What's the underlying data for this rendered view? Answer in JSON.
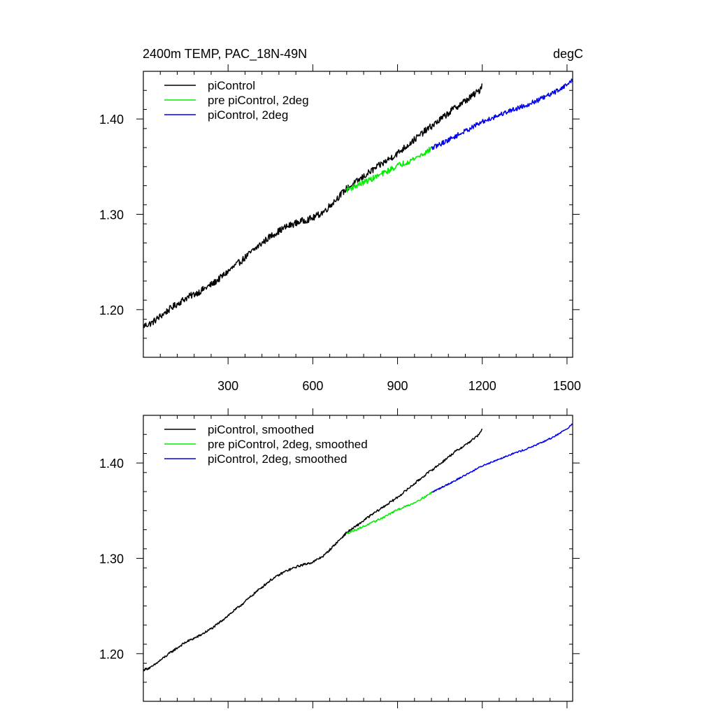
{
  "chart_data": [
    {
      "type": "line",
      "title_left": "2400m TEMP, PAC_18N-49N",
      "title_right": "degC",
      "xlim": [
        0,
        1520
      ],
      "ylim": [
        1.15,
        1.45
      ],
      "xticks": [
        300,
        600,
        900,
        1200,
        1500
      ],
      "xtick_labels": [
        "300",
        "600",
        "900",
        "1200",
        "1500"
      ],
      "show_xtick_labels": true,
      "yticks": [
        1.2,
        1.3,
        1.4
      ],
      "ytick_labels": [
        "1.20",
        "1.30",
        "1.40"
      ],
      "legend_position": "top-left",
      "series": [
        {
          "name": "piControl",
          "color": "#000000",
          "noise": 0.0035,
          "x": [
            1,
            30,
            60,
            100,
            150,
            200,
            250,
            300,
            350,
            400,
            450,
            500,
            550,
            600,
            640,
            680,
            700,
            720,
            750,
            800,
            850,
            900,
            950,
            1000,
            1050,
            1100,
            1150,
            1190,
            1200
          ],
          "y": [
            1.183,
            1.186,
            1.193,
            1.202,
            1.212,
            1.219,
            1.228,
            1.24,
            1.252,
            1.265,
            1.277,
            1.286,
            1.292,
            1.296,
            1.303,
            1.315,
            1.321,
            1.327,
            1.333,
            1.344,
            1.354,
            1.364,
            1.376,
            1.388,
            1.399,
            1.411,
            1.421,
            1.43,
            1.437
          ]
        },
        {
          "name": "pre piControl, 2deg",
          "color": "#00ee00",
          "noise": 0.003,
          "x": [
            720,
            760,
            800,
            850,
            900,
            950,
            1000,
            1020
          ],
          "y": [
            1.326,
            1.331,
            1.336,
            1.343,
            1.351,
            1.357,
            1.365,
            1.369
          ]
        },
        {
          "name": "piControl, 2deg",
          "color": "#0000ee",
          "noise": 0.0025,
          "x": [
            1020,
            1100,
            1150,
            1200,
            1250,
            1300,
            1350,
            1400,
            1450,
            1500,
            1520
          ],
          "y": [
            1.369,
            1.381,
            1.389,
            1.397,
            1.403,
            1.409,
            1.414,
            1.42,
            1.427,
            1.436,
            1.441
          ]
        }
      ]
    },
    {
      "type": "line",
      "xlim": [
        0,
        1520
      ],
      "ylim": [
        1.15,
        1.45
      ],
      "xticks": [
        300,
        600,
        900,
        1200,
        1500
      ],
      "show_xtick_labels": false,
      "yticks": [
        1.2,
        1.3,
        1.4
      ],
      "ytick_labels": [
        "1.20",
        "1.30",
        "1.40"
      ],
      "legend_position": "top-left",
      "series": [
        {
          "name": "piControl, smoothed",
          "color": "#000000",
          "noise": 0.0012,
          "x": [
            1,
            30,
            60,
            100,
            150,
            200,
            250,
            300,
            350,
            400,
            450,
            500,
            550,
            600,
            640,
            680,
            700,
            720,
            750,
            800,
            850,
            900,
            950,
            1000,
            1050,
            1100,
            1150,
            1190,
            1200
          ],
          "y": [
            1.183,
            1.186,
            1.193,
            1.202,
            1.212,
            1.219,
            1.228,
            1.24,
            1.252,
            1.265,
            1.277,
            1.286,
            1.292,
            1.296,
            1.303,
            1.315,
            1.321,
            1.327,
            1.333,
            1.344,
            1.354,
            1.364,
            1.376,
            1.388,
            1.399,
            1.411,
            1.421,
            1.43,
            1.437
          ]
        },
        {
          "name": "pre piControl, 2deg, smoothed",
          "color": "#00ee00",
          "noise": 0.001,
          "x": [
            720,
            760,
            800,
            850,
            900,
            950,
            1000,
            1020
          ],
          "y": [
            1.326,
            1.331,
            1.336,
            1.343,
            1.351,
            1.357,
            1.365,
            1.369
          ]
        },
        {
          "name": "piControl, 2deg, smoothed",
          "color": "#0000ee",
          "noise": 0.0008,
          "x": [
            1020,
            1100,
            1150,
            1200,
            1250,
            1300,
            1350,
            1400,
            1450,
            1500,
            1520
          ],
          "y": [
            1.369,
            1.381,
            1.389,
            1.397,
            1.403,
            1.409,
            1.414,
            1.42,
            1.427,
            1.436,
            1.441
          ]
        }
      ]
    }
  ]
}
